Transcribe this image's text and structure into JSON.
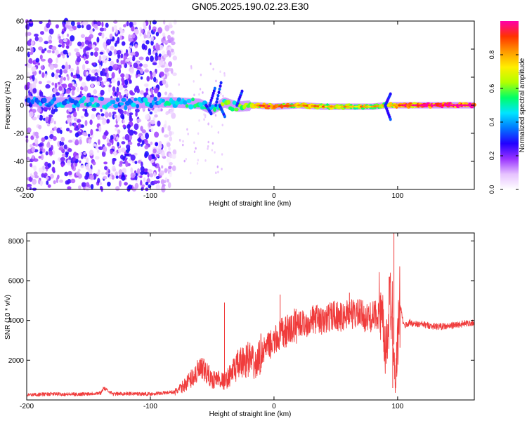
{
  "title": "GN05.2025.190.02.23.E30",
  "chart_data": [
    {
      "type": "heatmap",
      "xlabel": "Height of straight line (km)",
      "ylabel": "Frequency (Hz)",
      "xlim": [
        -200,
        162
      ],
      "ylim": [
        -60,
        60
      ],
      "xticks": [
        -200,
        -100,
        0,
        100
      ],
      "yticks": [
        -60,
        -40,
        -20,
        0,
        20,
        40,
        60
      ],
      "xticklabels": [
        "-200",
        "-100",
        "0",
        "100"
      ],
      "yticklabels": [
        "-60",
        "-40",
        "-20",
        "0",
        "20",
        "40",
        "60"
      ],
      "colorbar": {
        "label": "Normalized spectral amplitude",
        "range": [
          0,
          1
        ],
        "ticks": [
          0,
          0.2,
          0.4,
          0.6,
          0.8
        ],
        "ticklabels": [
          "0.0",
          "0.2",
          "0.4",
          "0.6",
          "0.8"
        ],
        "colormap": [
          "#ffffff",
          "#e6c2ff",
          "#9933ff",
          "#2200ff",
          "#0077ff",
          "#00e5ff",
          "#00ff66",
          "#b3ff00",
          "#ffee00",
          "#ff9900",
          "#ff3300",
          "#ff00aa"
        ]
      },
      "noise_region": {
        "x_from": -200,
        "x_to": -80,
        "amplitude": 0.2
      },
      "ridge": [
        {
          "x": -200,
          "freq": 3,
          "amplitude": 0.35
        },
        {
          "x": -180,
          "freq": 2,
          "amplitude": 0.4
        },
        {
          "x": -150,
          "freq": 2,
          "amplitude": 0.45
        },
        {
          "x": -120,
          "freq": 1,
          "amplitude": 0.4
        },
        {
          "x": -100,
          "freq": 2,
          "amplitude": 0.45
        },
        {
          "x": -80,
          "freq": 2,
          "amplitude": 0.5
        },
        {
          "x": -60,
          "freq": 1,
          "amplitude": 0.5
        },
        {
          "x": -50,
          "freq": -3,
          "amplitude": 0.55
        },
        {
          "x": -40,
          "freq": 2,
          "amplitude": 0.6
        },
        {
          "x": -30,
          "freq": -1,
          "amplitude": 0.6
        },
        {
          "x": -15,
          "freq": 0,
          "amplitude": 0.75
        },
        {
          "x": 0,
          "freq": -1,
          "amplitude": 0.8
        },
        {
          "x": 20,
          "freq": 0,
          "amplitude": 0.7
        },
        {
          "x": 40,
          "freq": -1,
          "amplitude": 0.7
        },
        {
          "x": 60,
          "freq": -1,
          "amplitude": 0.65
        },
        {
          "x": 80,
          "freq": -1,
          "amplitude": 0.7
        },
        {
          "x": 90,
          "freq": 0,
          "amplitude": 0.6
        },
        {
          "x": 100,
          "freq": 0,
          "amplitude": 0.8
        },
        {
          "x": 130,
          "freq": 0,
          "amplitude": 0.9
        },
        {
          "x": 162,
          "freq": 0,
          "amplitude": 0.95
        }
      ]
    },
    {
      "type": "line",
      "xlabel": "Height of straight line (km)",
      "ylabel": "SNR (10 * v/v)",
      "xlim": [
        -200,
        162
      ],
      "ylim": [
        0,
        8400
      ],
      "xticks": [
        -200,
        -100,
        0,
        100
      ],
      "yticks": [
        2000,
        4000,
        6000,
        8000
      ],
      "xticklabels": [
        "-200",
        "-100",
        "0",
        "100"
      ],
      "yticklabels": [
        "2000",
        "4000",
        "6000",
        "8000"
      ],
      "series": [
        {
          "color": "#f03c3c",
          "x": [
            -200,
            -180,
            -160,
            -140,
            -138,
            -130,
            -120,
            -100,
            -90,
            -80,
            -75,
            -70,
            -65,
            -60,
            -55,
            -50,
            -45,
            -40,
            -35,
            -30,
            -25,
            -20,
            -15,
            -10,
            -5,
            0,
            5,
            10,
            15,
            20,
            25,
            30,
            35,
            40,
            45,
            50,
            55,
            60,
            65,
            70,
            75,
            80,
            85,
            88,
            90,
            92,
            95,
            97,
            98,
            100,
            102,
            105,
            110,
            115,
            120,
            130,
            140,
            150,
            162
          ],
          "y": [
            250,
            300,
            280,
            350,
            600,
            300,
            320,
            300,
            350,
            400,
            600,
            900,
            1200,
            1500,
            1400,
            1000,
            1100,
            900,
            1300,
            1700,
            1900,
            2100,
            1700,
            2400,
            2700,
            2900,
            3300,
            3400,
            3600,
            3900,
            3800,
            4000,
            4100,
            3900,
            4200,
            4300,
            4100,
            4400,
            4300,
            4300,
            4100,
            4200,
            4400,
            3600,
            2200,
            3800,
            5500,
            2800,
            600,
            3000,
            4800,
            3700,
            3900,
            3800,
            3800,
            3700,
            3700,
            3800,
            3900
          ]
        }
      ]
    }
  ]
}
